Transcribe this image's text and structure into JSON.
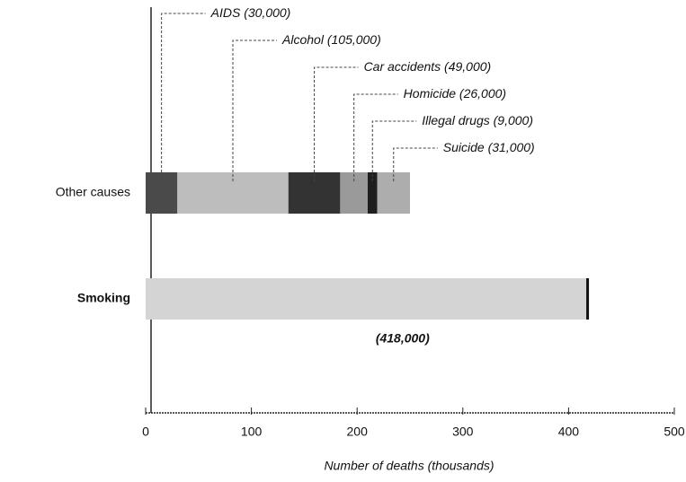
{
  "chart_data": {
    "type": "stacked-barh",
    "categories": [
      "Other causes",
      "Smoking"
    ],
    "series": [
      {
        "name": "AIDS",
        "color": "#4a4a4a",
        "values": [
          30,
          null
        ],
        "value_labels": [
          "(30,000)",
          null
        ]
      },
      {
        "name": "Alcohol",
        "color": "#bdbdbd",
        "values": [
          105,
          null
        ],
        "value_labels": [
          "(105,000)",
          null
        ]
      },
      {
        "name": "Car accidents",
        "color": "#333333",
        "values": [
          49,
          null
        ],
        "value_labels": [
          "(49,000)",
          null
        ]
      },
      {
        "name": "Homicide",
        "color": "#9a9a9a",
        "values": [
          26,
          null
        ],
        "value_labels": [
          "(26,000)",
          null
        ]
      },
      {
        "name": "Illegal drugs",
        "color": "#1e1e1e",
        "values": [
          9,
          null
        ],
        "value_labels": [
          "(9,000)",
          null
        ]
      },
      {
        "name": "Suicide",
        "color": "#adadad",
        "values": [
          31,
          null
        ],
        "value_labels": [
          "(31,000)",
          null
        ]
      },
      {
        "name": "Smoking",
        "color": "#d4d4d4",
        "values": [
          null,
          418
        ],
        "value_labels": [
          null,
          "(418,000)"
        ]
      }
    ],
    "xlabel": "Number of deaths (thousands)",
    "xlim": [
      0,
      500
    ],
    "xticks": [
      0,
      100,
      200,
      300,
      400,
      500
    ]
  }
}
